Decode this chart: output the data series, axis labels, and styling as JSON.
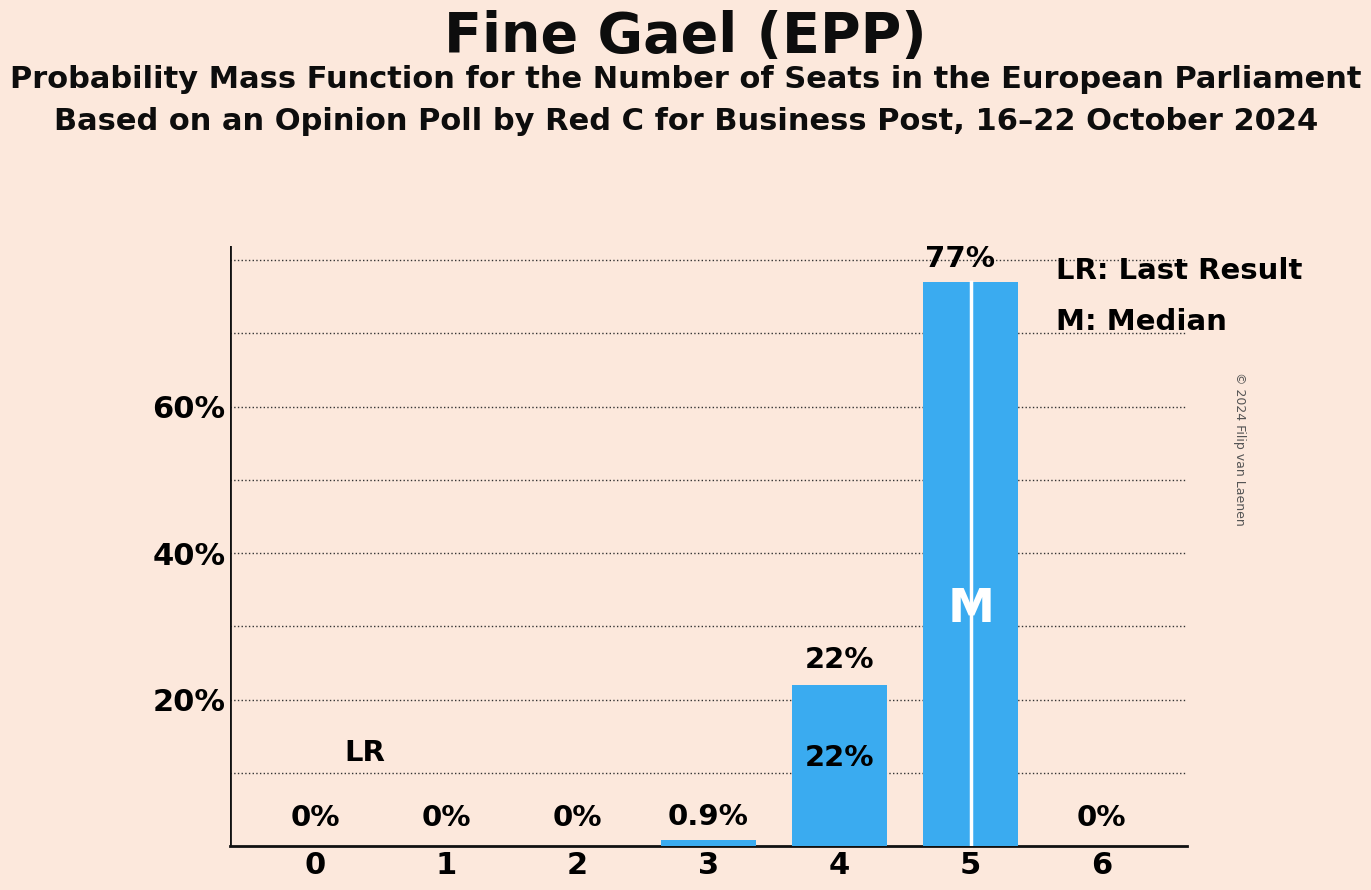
{
  "title": "Fine Gael (EPP)",
  "subtitle1": "Probability Mass Function for the Number of Seats in the European Parliament",
  "subtitle2": "Based on an Opinion Poll by Red C for Business Post, 16–22 October 2024",
  "copyright": "© 2024 Filip van Laenen",
  "categories": [
    0,
    1,
    2,
    3,
    4,
    5,
    6
  ],
  "values": [
    0.0,
    0.0,
    0.0,
    0.9,
    22.0,
    77.0,
    0.0
  ],
  "bar_color": "#3aabf0",
  "background_color": "#fce8dc",
  "ylabel_ticks": [
    0,
    10,
    20,
    30,
    40,
    50,
    60,
    70,
    80
  ],
  "ylabel_labels": [
    "",
    "",
    "20%",
    "",
    "40%",
    "",
    "60%",
    "",
    ""
  ],
  "ylim": [
    0,
    82
  ],
  "bar_labels": [
    "0%",
    "0%",
    "0%",
    "0.9%",
    "22%",
    "77%",
    "0%"
  ],
  "bar_label_fontsize": 21,
  "lr_value": 10.0,
  "median_seat": 5,
  "title_fontsize": 40,
  "subtitle_fontsize": 22,
  "tick_fontsize": 22,
  "legend_fontsize": 21,
  "dotted_gridlines": [
    10,
    20,
    30,
    40,
    50,
    60,
    70,
    80
  ],
  "bar_width": 0.72,
  "xlim": [
    -0.65,
    6.65
  ]
}
